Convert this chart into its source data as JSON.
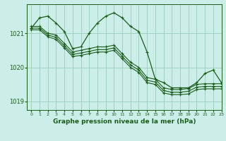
{
  "background_color": "#cceee8",
  "grid_color": "#99ccbb",
  "line_color": "#1a5c1a",
  "title": "Graphe pression niveau de la mer (hPa)",
  "xlim": [
    -0.5,
    23
  ],
  "ylim": [
    1018.75,
    1021.85
  ],
  "yticks": [
    1019,
    1020,
    1021
  ],
  "xtick_labels": [
    "0",
    "1",
    "2",
    "3",
    "4",
    "5",
    "6",
    "7",
    "8",
    "9",
    "10",
    "11",
    "12",
    "13",
    "14",
    "15",
    "16",
    "17",
    "18",
    "19",
    "20",
    "21",
    "22",
    "23"
  ],
  "series": [
    [
      1021.15,
      1021.45,
      1021.5,
      1021.3,
      1021.05,
      1020.55,
      1020.6,
      1021.0,
      1021.3,
      1021.5,
      1021.6,
      1021.45,
      1021.2,
      1021.05,
      1020.45,
      1019.65,
      1019.55,
      1019.4,
      1019.4,
      1019.4,
      1019.55,
      1019.82,
      1019.92,
      1019.55
    ],
    [
      1021.2,
      1021.2,
      1021.0,
      1020.95,
      1020.7,
      1020.45,
      1020.5,
      1020.55,
      1020.6,
      1020.6,
      1020.65,
      1020.4,
      1020.15,
      1020.0,
      1019.7,
      1019.65,
      1019.4,
      1019.35,
      1019.35,
      1019.38,
      1019.5,
      1019.52,
      1019.52,
      1019.52
    ],
    [
      1021.15,
      1021.15,
      1020.95,
      1020.88,
      1020.63,
      1020.38,
      1020.42,
      1020.47,
      1020.52,
      1020.52,
      1020.57,
      1020.32,
      1020.07,
      1019.92,
      1019.62,
      1019.57,
      1019.32,
      1019.27,
      1019.27,
      1019.3,
      1019.42,
      1019.44,
      1019.44,
      1019.44
    ],
    [
      1021.1,
      1021.1,
      1020.9,
      1020.82,
      1020.57,
      1020.32,
      1020.35,
      1020.4,
      1020.45,
      1020.45,
      1020.5,
      1020.25,
      1020.0,
      1019.85,
      1019.55,
      1019.5,
      1019.25,
      1019.2,
      1019.2,
      1019.22,
      1019.35,
      1019.37,
      1019.37,
      1019.37
    ]
  ]
}
